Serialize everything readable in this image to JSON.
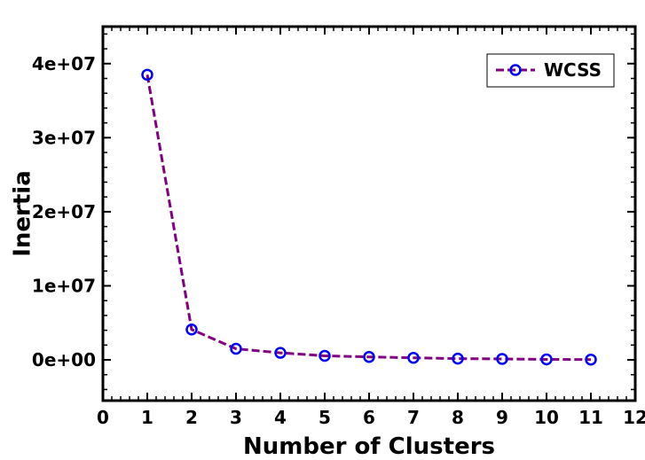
{
  "chart_data": {
    "type": "line",
    "xlabel": "Number of Clusters",
    "ylabel": "Inertia",
    "xlim": [
      0,
      12
    ],
    "ylim": [
      -5500000,
      45000000
    ],
    "x_ticks": [
      0,
      1,
      2,
      3,
      4,
      5,
      6,
      7,
      8,
      9,
      10,
      11,
      12
    ],
    "x_tick_labels": [
      "0",
      "1",
      "2",
      "3",
      "4",
      "5",
      "6",
      "7",
      "8",
      "9",
      "10",
      "11",
      "12"
    ],
    "y_ticks": [
      0,
      10000000,
      20000000,
      30000000,
      40000000
    ],
    "y_tick_labels": [
      "0e+00",
      "1e+07",
      "2e+07",
      "3e+07",
      "4e+07"
    ],
    "grid": false,
    "legend": {
      "position": "top-right"
    },
    "series": [
      {
        "name": "WCSS",
        "line_color": "#800080",
        "marker_color": "#0000ff",
        "line_style": "dashed",
        "marker": "circle",
        "x": [
          1,
          2,
          3,
          4,
          5,
          6,
          7,
          8,
          9,
          10,
          11
        ],
        "y": [
          38500000,
          4100000,
          1500000,
          950000,
          550000,
          400000,
          280000,
          170000,
          130000,
          70000,
          40000
        ]
      }
    ]
  }
}
